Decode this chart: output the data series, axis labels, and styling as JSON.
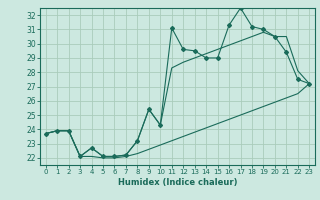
{
  "xlabel": "Humidex (Indice chaleur)",
  "bg_color": "#cce8e0",
  "grid_color": "#aaccbb",
  "line_color": "#1a6b5a",
  "xlim": [
    -0.5,
    23.5
  ],
  "ylim": [
    21.5,
    32.5
  ],
  "xticks": [
    0,
    1,
    2,
    3,
    4,
    5,
    6,
    7,
    8,
    9,
    10,
    11,
    12,
    13,
    14,
    15,
    16,
    17,
    18,
    19,
    20,
    21,
    22,
    23
  ],
  "yticks": [
    22,
    23,
    24,
    25,
    26,
    27,
    28,
    29,
    30,
    31,
    32
  ],
  "main_line": [
    23.7,
    23.9,
    23.9,
    22.1,
    22.7,
    22.1,
    22.1,
    22.2,
    23.2,
    25.4,
    24.3,
    31.1,
    29.6,
    29.5,
    29.0,
    29.0,
    31.3,
    32.5,
    31.2,
    31.0,
    30.5,
    29.4,
    27.5,
    27.2
  ],
  "trend_upper": [
    23.7,
    23.9,
    23.9,
    22.1,
    22.7,
    22.1,
    22.1,
    22.2,
    23.2,
    25.4,
    24.3,
    28.3,
    28.7,
    29.0,
    29.3,
    29.6,
    29.9,
    30.2,
    30.5,
    30.8,
    30.5,
    30.5,
    28.1,
    27.2
  ],
  "trend_lower": [
    23.7,
    23.9,
    23.9,
    22.1,
    22.1,
    22.0,
    22.0,
    22.1,
    22.3,
    22.6,
    22.9,
    23.2,
    23.5,
    23.8,
    24.1,
    24.4,
    24.7,
    25.0,
    25.3,
    25.6,
    25.9,
    26.2,
    26.5,
    27.2
  ]
}
